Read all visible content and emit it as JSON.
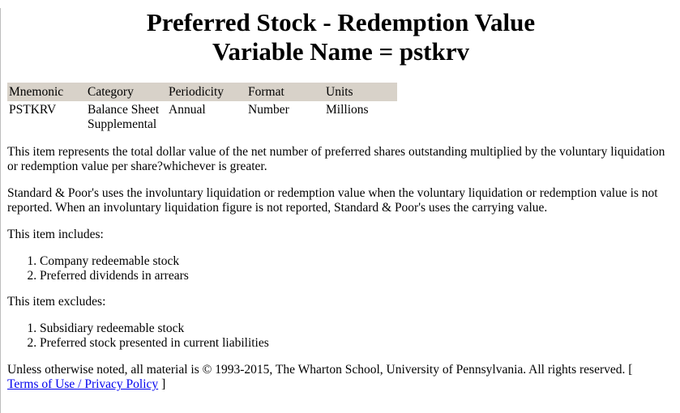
{
  "title_line1": "Preferred Stock - Redemption Value",
  "title_line2": "Variable Name = pstkrv",
  "table": {
    "headers": [
      "Mnemonic",
      "Category",
      "Periodicity",
      "Format",
      "Units"
    ],
    "row": {
      "mnemonic": "PSTKRV",
      "category_line1": "Balance Sheet",
      "category_line2": "Supplemental",
      "periodicity": "Annual",
      "format": "Number",
      "units": "Millions"
    }
  },
  "description": "This item represents the total dollar value of the net number of preferred shares outstanding multiplied by the voluntary liquidation or redemption value per share?whichever is greater.",
  "note": "Standard & Poor's uses the involuntary liquidation or redemption value when the voluntary liquidation or redemption value is not reported. When an involuntary liquidation figure is not reported, Standard & Poor's uses the carrying value.",
  "includes_label": "This item includes:",
  "includes": [
    "Company redeemable stock",
    "Preferred dividends in arrears"
  ],
  "excludes_label": "This item excludes:",
  "excludes": [
    "Subsidiary redeemable stock",
    "Preferred stock presented in current liabilities"
  ],
  "footer": {
    "copyright": "Unless otherwise noted, all material is © 1993-2015, The Wharton School, University of Pennsylvania. All rights reserved. [",
    "link_text": "Terms of Use / Privacy Policy",
    "close_bracket": "]"
  }
}
